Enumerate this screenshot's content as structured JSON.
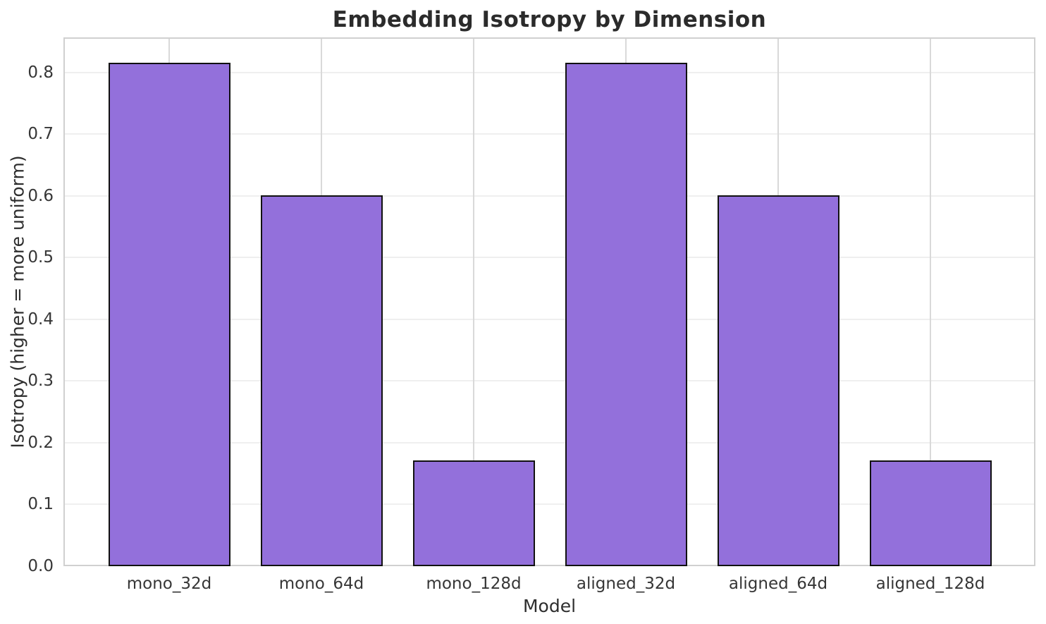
{
  "chart_data": {
    "type": "bar",
    "title": "Embedding Isotropy by Dimension",
    "xlabel": "Model",
    "ylabel": "Isotropy (higher = more uniform)",
    "categories": [
      "mono_32d",
      "mono_64d",
      "mono_128d",
      "aligned_32d",
      "aligned_64d",
      "aligned_128d"
    ],
    "values": [
      0.816,
      0.601,
      0.171,
      0.816,
      0.601,
      0.171
    ],
    "series": [
      {
        "name": "Isotropy",
        "values": [
          0.816,
          0.601,
          0.171,
          0.816,
          0.601,
          0.171
        ]
      }
    ],
    "ylim": [
      0.0,
      0.857
    ],
    "yticks": [
      0.0,
      0.1,
      0.2,
      0.3,
      0.4,
      0.5,
      0.6,
      0.7,
      0.8
    ],
    "ytick_labels": [
      "0.0",
      "0.1",
      "0.2",
      "0.3",
      "0.4",
      "0.5",
      "0.6",
      "0.7",
      "0.8"
    ],
    "legend_position": "none",
    "grid": "both (light horizontal lines at each 0.1, light vertical lines at each category)",
    "bar_fill_color": "#9370DB",
    "bar_edge_color": "#111111",
    "gridline_color_h": "#efefef",
    "gridline_color_v": "#d9d9d9",
    "spine_color": "#d0d0d0",
    "title_color": "#2b2b2b",
    "tick_label_color": "#363636"
  }
}
